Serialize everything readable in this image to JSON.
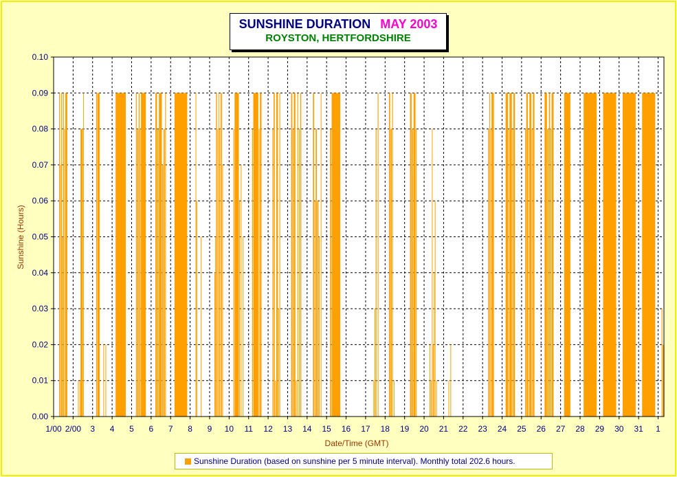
{
  "title": {
    "main": "SUNSHINE DURATION",
    "month": "MAY 2003",
    "subtitle": "ROYSTON, HERTFORDSHIRE"
  },
  "legend": {
    "label": "Sunshine Duration (based on sunshine per 5 minute interval). Monthly total 202.6 hours."
  },
  "colors": {
    "bars": "#ffa000",
    "background": "#ffffc0",
    "title": "#000080",
    "month": "#ff00cc",
    "subtitle": "#008000",
    "axis_text": "#000080",
    "axis_label": "#993300"
  },
  "chart_data": {
    "type": "bar",
    "title": "SUNSHINE DURATION  MAY 2003",
    "subtitle": "ROYSTON, HERTFORDSHIRE",
    "xlabel": "Date/Time (GMT)",
    "ylabel": "Sunshine (Hours)",
    "ylim": [
      0,
      0.1
    ],
    "yticks": [
      "0.00",
      "0.01",
      "0.02",
      "0.03",
      "0.04",
      "0.05",
      "0.06",
      "0.07",
      "0.08",
      "0.09",
      "0.10"
    ],
    "xlim": [
      1,
      32.3
    ],
    "xticks": [
      {
        "label": "1/00",
        "x": 1
      },
      {
        "label": "2/00",
        "x": 2
      },
      {
        "label": "3",
        "x": 3
      },
      {
        "label": "4",
        "x": 4
      },
      {
        "label": "5",
        "x": 5
      },
      {
        "label": "6",
        "x": 6
      },
      {
        "label": "7",
        "x": 7
      },
      {
        "label": "8",
        "x": 8
      },
      {
        "label": "9",
        "x": 9
      },
      {
        "label": "10",
        "x": 10
      },
      {
        "label": "11",
        "x": 11
      },
      {
        "label": "12",
        "x": 12
      },
      {
        "label": "13",
        "x": 13
      },
      {
        "label": "14",
        "x": 14
      },
      {
        "label": "15",
        "x": 15
      },
      {
        "label": "16",
        "x": 16
      },
      {
        "label": "17",
        "x": 17
      },
      {
        "label": "18",
        "x": 18
      },
      {
        "label": "19",
        "x": 19
      },
      {
        "label": "20",
        "x": 20
      },
      {
        "label": "21",
        "x": 21
      },
      {
        "label": "22",
        "x": 22
      },
      {
        "label": "23",
        "x": 23
      },
      {
        "label": "24",
        "x": 24
      },
      {
        "label": "25",
        "x": 25
      },
      {
        "label": "26",
        "x": 26
      },
      {
        "label": "27",
        "x": 27
      },
      {
        "label": "28",
        "x": 28
      },
      {
        "label": "29",
        "x": 29
      },
      {
        "label": "30",
        "x": 30
      },
      {
        "label": "31",
        "x": 31
      },
      {
        "label": "1",
        "x": 32
      }
    ],
    "grid": true,
    "legend_position": "bottom",
    "series": [
      {
        "name": "Sunshine Duration (based on sunshine per 5 minute interval). Monthly total 202.6 hours.",
        "intervals": [
          {
            "start": 1.28,
            "end": 1.32,
            "value": 0.09
          },
          {
            "start": 1.34,
            "end": 1.37,
            "value": 0.07
          },
          {
            "start": 1.38,
            "end": 1.42,
            "value": 0.09
          },
          {
            "start": 1.44,
            "end": 1.46,
            "value": 0.05
          },
          {
            "start": 1.47,
            "end": 1.52,
            "value": 0.09
          },
          {
            "start": 1.54,
            "end": 1.58,
            "value": 0.08
          },
          {
            "start": 1.6,
            "end": 1.7,
            "value": 0.09
          },
          {
            "start": 2.25,
            "end": 2.28,
            "value": 0.01
          },
          {
            "start": 2.33,
            "end": 2.36,
            "value": 0.01
          },
          {
            "start": 2.38,
            "end": 2.5,
            "value": 0.08
          },
          {
            "start": 2.52,
            "end": 2.55,
            "value": 0.09
          },
          {
            "start": 3.18,
            "end": 3.23,
            "value": 0.09
          },
          {
            "start": 3.25,
            "end": 3.36,
            "value": 0.09
          },
          {
            "start": 3.55,
            "end": 3.58,
            "value": 0.02
          },
          {
            "start": 3.66,
            "end": 3.69,
            "value": 0.02
          },
          {
            "start": 4.18,
            "end": 4.7,
            "value": 0.09
          },
          {
            "start": 5.22,
            "end": 5.26,
            "value": 0.09
          },
          {
            "start": 5.28,
            "end": 5.34,
            "value": 0.08
          },
          {
            "start": 5.36,
            "end": 5.41,
            "value": 0.09
          },
          {
            "start": 5.43,
            "end": 5.46,
            "value": 0.08
          },
          {
            "start": 5.48,
            "end": 5.73,
            "value": 0.09
          },
          {
            "start": 6.22,
            "end": 6.3,
            "value": 0.09
          },
          {
            "start": 6.32,
            "end": 6.38,
            "value": 0.08
          },
          {
            "start": 6.4,
            "end": 6.55,
            "value": 0.09
          },
          {
            "start": 6.57,
            "end": 6.62,
            "value": 0.07
          },
          {
            "start": 6.64,
            "end": 6.7,
            "value": 0.08
          },
          {
            "start": 6.72,
            "end": 6.76,
            "value": 0.09
          },
          {
            "start": 7.2,
            "end": 7.85,
            "value": 0.09
          },
          {
            "start": 8.28,
            "end": 8.3,
            "value": 0.09
          },
          {
            "start": 8.32,
            "end": 8.36,
            "value": 0.06
          },
          {
            "start": 8.55,
            "end": 8.58,
            "value": 0.05
          },
          {
            "start": 9.25,
            "end": 9.27,
            "value": 0.04
          },
          {
            "start": 9.29,
            "end": 9.31,
            "value": 0.05
          },
          {
            "start": 9.33,
            "end": 9.38,
            "value": 0.09
          },
          {
            "start": 9.4,
            "end": 9.43,
            "value": 0.08
          },
          {
            "start": 9.45,
            "end": 9.48,
            "value": 0.09
          },
          {
            "start": 9.5,
            "end": 9.53,
            "value": 0.08
          },
          {
            "start": 9.55,
            "end": 9.58,
            "value": 0.09
          },
          {
            "start": 9.6,
            "end": 9.63,
            "value": 0.09
          },
          {
            "start": 9.65,
            "end": 9.68,
            "value": 0.07
          },
          {
            "start": 10.22,
            "end": 10.26,
            "value": 0.08
          },
          {
            "start": 10.28,
            "end": 10.5,
            "value": 0.09
          },
          {
            "start": 10.52,
            "end": 10.55,
            "value": 0.06
          },
          {
            "start": 10.6,
            "end": 10.63,
            "value": 0.07
          },
          {
            "start": 10.7,
            "end": 10.73,
            "value": 0.05
          },
          {
            "start": 11.18,
            "end": 11.22,
            "value": 0.08
          },
          {
            "start": 11.24,
            "end": 11.5,
            "value": 0.09
          },
          {
            "start": 11.52,
            "end": 11.56,
            "value": 0.08
          },
          {
            "start": 11.58,
            "end": 11.66,
            "value": 0.09
          },
          {
            "start": 12.22,
            "end": 12.26,
            "value": 0.08
          },
          {
            "start": 12.28,
            "end": 12.34,
            "value": 0.09
          },
          {
            "start": 12.36,
            "end": 12.4,
            "value": 0.01
          },
          {
            "start": 12.42,
            "end": 12.5,
            "value": 0.09
          },
          {
            "start": 12.52,
            "end": 12.55,
            "value": 0.03
          },
          {
            "start": 12.58,
            "end": 12.62,
            "value": 0.09
          },
          {
            "start": 13.18,
            "end": 13.24,
            "value": 0.09
          },
          {
            "start": 13.26,
            "end": 13.3,
            "value": 0.08
          },
          {
            "start": 13.32,
            "end": 13.4,
            "value": 0.09
          },
          {
            "start": 13.42,
            "end": 13.46,
            "value": 0.01
          },
          {
            "start": 13.5,
            "end": 13.54,
            "value": 0.09
          },
          {
            "start": 13.58,
            "end": 13.62,
            "value": 0.08
          },
          {
            "start": 13.65,
            "end": 13.7,
            "value": 0.09
          },
          {
            "start": 14.3,
            "end": 14.36,
            "value": 0.09
          },
          {
            "start": 14.38,
            "end": 14.42,
            "value": 0.06
          },
          {
            "start": 14.44,
            "end": 14.5,
            "value": 0.08
          },
          {
            "start": 14.52,
            "end": 14.58,
            "value": 0.06
          },
          {
            "start": 14.6,
            "end": 14.64,
            "value": 0.05
          },
          {
            "start": 14.7,
            "end": 14.73,
            "value": 0.09
          },
          {
            "start": 15.18,
            "end": 15.24,
            "value": 0.08
          },
          {
            "start": 15.26,
            "end": 15.7,
            "value": 0.09
          },
          {
            "start": 17.4,
            "end": 17.44,
            "value": 0.01
          },
          {
            "start": 17.46,
            "end": 17.5,
            "value": 0.03
          },
          {
            "start": 17.52,
            "end": 17.56,
            "value": 0.08
          },
          {
            "start": 17.62,
            "end": 17.66,
            "value": 0.09
          },
          {
            "start": 18.2,
            "end": 18.26,
            "value": 0.09
          },
          {
            "start": 18.28,
            "end": 18.34,
            "value": 0.08
          },
          {
            "start": 18.36,
            "end": 18.4,
            "value": 0.09
          },
          {
            "start": 18.45,
            "end": 18.48,
            "value": 0.01
          },
          {
            "start": 19.28,
            "end": 19.36,
            "value": 0.09
          },
          {
            "start": 19.38,
            "end": 19.44,
            "value": 0.08
          },
          {
            "start": 19.46,
            "end": 19.56,
            "value": 0.09
          },
          {
            "start": 19.58,
            "end": 19.62,
            "value": 0.08
          },
          {
            "start": 20.28,
            "end": 20.32,
            "value": 0.02
          },
          {
            "start": 20.34,
            "end": 20.38,
            "value": 0.01
          },
          {
            "start": 20.4,
            "end": 20.43,
            "value": 0.08
          },
          {
            "start": 20.45,
            "end": 20.48,
            "value": 0.02
          },
          {
            "start": 20.5,
            "end": 20.53,
            "value": 0.04
          },
          {
            "start": 20.55,
            "end": 20.58,
            "value": 0.06
          },
          {
            "start": 20.62,
            "end": 20.65,
            "value": 0.01
          },
          {
            "start": 21.25,
            "end": 21.28,
            "value": 0.01
          },
          {
            "start": 21.35,
            "end": 21.37,
            "value": 0.02
          },
          {
            "start": 23.28,
            "end": 23.32,
            "value": 0.08
          },
          {
            "start": 23.34,
            "end": 23.38,
            "value": 0.09
          },
          {
            "start": 23.4,
            "end": 23.44,
            "value": 0.08
          },
          {
            "start": 23.46,
            "end": 23.58,
            "value": 0.09
          },
          {
            "start": 24.18,
            "end": 24.3,
            "value": 0.09
          },
          {
            "start": 24.32,
            "end": 24.36,
            "value": 0.08
          },
          {
            "start": 24.38,
            "end": 24.5,
            "value": 0.09
          },
          {
            "start": 24.52,
            "end": 24.56,
            "value": 0.08
          },
          {
            "start": 24.58,
            "end": 24.66,
            "value": 0.09
          },
          {
            "start": 25.18,
            "end": 25.22,
            "value": 0.08
          },
          {
            "start": 25.24,
            "end": 25.32,
            "value": 0.09
          },
          {
            "start": 25.34,
            "end": 25.38,
            "value": 0.08
          },
          {
            "start": 25.4,
            "end": 25.5,
            "value": 0.09
          },
          {
            "start": 25.52,
            "end": 25.56,
            "value": 0.08
          },
          {
            "start": 25.58,
            "end": 25.66,
            "value": 0.09
          },
          {
            "start": 26.18,
            "end": 26.3,
            "value": 0.09
          },
          {
            "start": 26.32,
            "end": 26.38,
            "value": 0.08
          },
          {
            "start": 26.4,
            "end": 26.46,
            "value": 0.09
          },
          {
            "start": 26.48,
            "end": 26.52,
            "value": 0.08
          },
          {
            "start": 26.54,
            "end": 26.64,
            "value": 0.09
          },
          {
            "start": 27.18,
            "end": 27.5,
            "value": 0.09
          },
          {
            "start": 28.18,
            "end": 28.85,
            "value": 0.09
          },
          {
            "start": 29.18,
            "end": 29.85,
            "value": 0.09
          },
          {
            "start": 30.18,
            "end": 30.85,
            "value": 0.09
          },
          {
            "start": 31.18,
            "end": 31.85,
            "value": 0.09
          },
          {
            "start": 32.18,
            "end": 32.22,
            "value": 0.03
          },
          {
            "start": 32.24,
            "end": 32.28,
            "value": 0.02
          }
        ]
      }
    ]
  }
}
